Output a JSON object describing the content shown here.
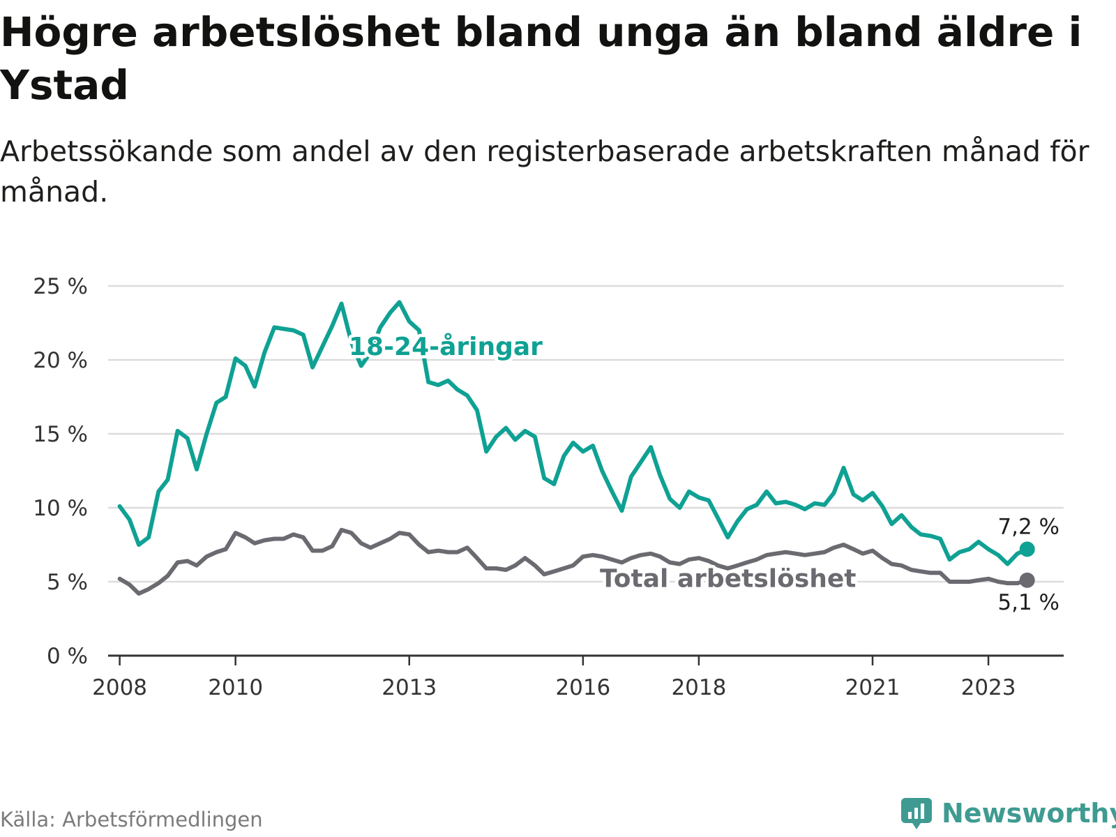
{
  "title": "Högre arbetslöshet bland unga än bland äldre i Ystad",
  "subtitle": "Arbetssökande som andel av den registerbaserade arbetskraften månad för månad.",
  "source": "Källa: Arbetsförmedlingen",
  "brand": "Newsworthy",
  "colors": {
    "youth": "#0fa193",
    "total": "#6b6a70",
    "grid": "#dcdcdc",
    "axis": "#333333",
    "brand": "#3f9b91"
  },
  "chart_data": {
    "type": "line",
    "title": "Högre arbetslöshet bland unga än bland äldre i Ystad",
    "xlabel": "",
    "ylabel": "",
    "xlim": [
      2007.8,
      2024.3
    ],
    "ylim": [
      0,
      25
    ],
    "y_ticks": [
      0,
      5,
      10,
      15,
      20,
      25
    ],
    "y_tick_labels": [
      "0 %",
      "5 %",
      "10 %",
      "15 %",
      "20 %",
      "25 %"
    ],
    "x_ticks": [
      2008,
      2010,
      2013,
      2016,
      2018,
      2021,
      2023
    ],
    "x_tick_labels": [
      "2008",
      "2010",
      "2013",
      "2016",
      "2018",
      "2021",
      "2023"
    ],
    "series": [
      {
        "name": "18-24-åringar",
        "color": "#0fa193",
        "end_label": "7,2 %",
        "end_value": 7.2,
        "points": [
          [
            2008.0,
            10.1
          ],
          [
            2008.17,
            9.2
          ],
          [
            2008.33,
            7.5
          ],
          [
            2008.5,
            8.0
          ],
          [
            2008.67,
            11.1
          ],
          [
            2008.83,
            11.9
          ],
          [
            2009.0,
            15.2
          ],
          [
            2009.17,
            14.7
          ],
          [
            2009.33,
            12.6
          ],
          [
            2009.5,
            15.0
          ],
          [
            2009.67,
            17.1
          ],
          [
            2009.83,
            17.5
          ],
          [
            2010.0,
            20.1
          ],
          [
            2010.17,
            19.6
          ],
          [
            2010.33,
            18.2
          ],
          [
            2010.5,
            20.5
          ],
          [
            2010.67,
            22.2
          ],
          [
            2010.83,
            22.1
          ],
          [
            2011.0,
            22.0
          ],
          [
            2011.17,
            21.7
          ],
          [
            2011.33,
            19.5
          ],
          [
            2011.5,
            20.9
          ],
          [
            2011.67,
            22.3
          ],
          [
            2011.83,
            23.8
          ],
          [
            2012.0,
            21.2
          ],
          [
            2012.17,
            19.6
          ],
          [
            2012.33,
            20.5
          ],
          [
            2012.5,
            22.2
          ],
          [
            2012.67,
            23.2
          ],
          [
            2012.83,
            23.9
          ],
          [
            2013.0,
            22.6
          ],
          [
            2013.17,
            22.0
          ],
          [
            2013.33,
            18.5
          ],
          [
            2013.5,
            18.3
          ],
          [
            2013.67,
            18.6
          ],
          [
            2013.83,
            18.0
          ],
          [
            2014.0,
            17.6
          ],
          [
            2014.17,
            16.6
          ],
          [
            2014.33,
            13.8
          ],
          [
            2014.5,
            14.8
          ],
          [
            2014.67,
            15.4
          ],
          [
            2014.83,
            14.6
          ],
          [
            2015.0,
            15.2
          ],
          [
            2015.17,
            14.8
          ],
          [
            2015.33,
            12.0
          ],
          [
            2015.5,
            11.6
          ],
          [
            2015.67,
            13.5
          ],
          [
            2015.83,
            14.4
          ],
          [
            2016.0,
            13.8
          ],
          [
            2016.17,
            14.2
          ],
          [
            2016.33,
            12.5
          ],
          [
            2016.5,
            11.1
          ],
          [
            2016.67,
            9.8
          ],
          [
            2016.83,
            12.1
          ],
          [
            2017.0,
            13.1
          ],
          [
            2017.17,
            14.1
          ],
          [
            2017.33,
            12.2
          ],
          [
            2017.5,
            10.6
          ],
          [
            2017.67,
            10.0
          ],
          [
            2017.83,
            11.1
          ],
          [
            2018.0,
            10.7
          ],
          [
            2018.17,
            10.5
          ],
          [
            2018.33,
            9.3
          ],
          [
            2018.5,
            8.0
          ],
          [
            2018.67,
            9.1
          ],
          [
            2018.83,
            9.9
          ],
          [
            2019.0,
            10.2
          ],
          [
            2019.17,
            11.1
          ],
          [
            2019.33,
            10.3
          ],
          [
            2019.5,
            10.4
          ],
          [
            2019.67,
            10.2
          ],
          [
            2019.83,
            9.9
          ],
          [
            2020.0,
            10.3
          ],
          [
            2020.17,
            10.2
          ],
          [
            2020.33,
            11.0
          ],
          [
            2020.5,
            12.7
          ],
          [
            2020.67,
            10.9
          ],
          [
            2020.83,
            10.5
          ],
          [
            2021.0,
            11.0
          ],
          [
            2021.17,
            10.1
          ],
          [
            2021.33,
            8.9
          ],
          [
            2021.5,
            9.5
          ],
          [
            2021.67,
            8.7
          ],
          [
            2021.83,
            8.2
          ],
          [
            2022.0,
            8.1
          ],
          [
            2022.17,
            7.9
          ],
          [
            2022.33,
            6.5
          ],
          [
            2022.5,
            7.0
          ],
          [
            2022.67,
            7.2
          ],
          [
            2022.83,
            7.7
          ],
          [
            2023.0,
            7.2
          ],
          [
            2023.17,
            6.8
          ],
          [
            2023.33,
            6.2
          ],
          [
            2023.5,
            6.9
          ],
          [
            2023.67,
            7.2
          ]
        ]
      },
      {
        "name": "Total arbetslöshet",
        "color": "#6b6a70",
        "end_label": "5,1 %",
        "end_value": 5.1,
        "points": [
          [
            2008.0,
            5.2
          ],
          [
            2008.17,
            4.8
          ],
          [
            2008.33,
            4.2
          ],
          [
            2008.5,
            4.5
          ],
          [
            2008.67,
            4.9
          ],
          [
            2008.83,
            5.4
          ],
          [
            2009.0,
            6.3
          ],
          [
            2009.17,
            6.4
          ],
          [
            2009.33,
            6.1
          ],
          [
            2009.5,
            6.7
          ],
          [
            2009.67,
            7.0
          ],
          [
            2009.83,
            7.2
          ],
          [
            2010.0,
            8.3
          ],
          [
            2010.17,
            8.0
          ],
          [
            2010.33,
            7.6
          ],
          [
            2010.5,
            7.8
          ],
          [
            2010.67,
            7.9
          ],
          [
            2010.83,
            7.9
          ],
          [
            2011.0,
            8.2
          ],
          [
            2011.17,
            8.0
          ],
          [
            2011.33,
            7.1
          ],
          [
            2011.5,
            7.1
          ],
          [
            2011.67,
            7.4
          ],
          [
            2011.83,
            8.5
          ],
          [
            2012.0,
            8.3
          ],
          [
            2012.17,
            7.6
          ],
          [
            2012.33,
            7.3
          ],
          [
            2012.5,
            7.6
          ],
          [
            2012.67,
            7.9
          ],
          [
            2012.83,
            8.3
          ],
          [
            2013.0,
            8.2
          ],
          [
            2013.17,
            7.5
          ],
          [
            2013.33,
            7.0
          ],
          [
            2013.5,
            7.1
          ],
          [
            2013.67,
            7.0
          ],
          [
            2013.83,
            7.0
          ],
          [
            2014.0,
            7.3
          ],
          [
            2014.17,
            6.6
          ],
          [
            2014.33,
            5.9
          ],
          [
            2014.5,
            5.9
          ],
          [
            2014.67,
            5.8
          ],
          [
            2014.83,
            6.1
          ],
          [
            2015.0,
            6.6
          ],
          [
            2015.17,
            6.1
          ],
          [
            2015.33,
            5.5
          ],
          [
            2015.5,
            5.7
          ],
          [
            2015.67,
            5.9
          ],
          [
            2015.83,
            6.1
          ],
          [
            2016.0,
            6.7
          ],
          [
            2016.17,
            6.8
          ],
          [
            2016.33,
            6.7
          ],
          [
            2016.5,
            6.5
          ],
          [
            2016.67,
            6.3
          ],
          [
            2016.83,
            6.6
          ],
          [
            2017.0,
            6.8
          ],
          [
            2017.17,
            6.9
          ],
          [
            2017.33,
            6.7
          ],
          [
            2017.5,
            6.3
          ],
          [
            2017.67,
            6.2
          ],
          [
            2017.83,
            6.5
          ],
          [
            2018.0,
            6.6
          ],
          [
            2018.17,
            6.4
          ],
          [
            2018.33,
            6.1
          ],
          [
            2018.5,
            5.9
          ],
          [
            2018.67,
            6.1
          ],
          [
            2018.83,
            6.3
          ],
          [
            2019.0,
            6.5
          ],
          [
            2019.17,
            6.8
          ],
          [
            2019.33,
            6.9
          ],
          [
            2019.5,
            7.0
          ],
          [
            2019.67,
            6.9
          ],
          [
            2019.83,
            6.8
          ],
          [
            2020.0,
            6.9
          ],
          [
            2020.17,
            7.0
          ],
          [
            2020.33,
            7.3
          ],
          [
            2020.5,
            7.5
          ],
          [
            2020.67,
            7.2
          ],
          [
            2020.83,
            6.9
          ],
          [
            2021.0,
            7.1
          ],
          [
            2021.17,
            6.6
          ],
          [
            2021.33,
            6.2
          ],
          [
            2021.5,
            6.1
          ],
          [
            2021.67,
            5.8
          ],
          [
            2021.83,
            5.7
          ],
          [
            2022.0,
            5.6
          ],
          [
            2022.17,
            5.6
          ],
          [
            2022.33,
            5.0
          ],
          [
            2022.5,
            5.0
          ],
          [
            2022.67,
            5.0
          ],
          [
            2022.83,
            5.1
          ],
          [
            2023.0,
            5.2
          ],
          [
            2023.17,
            5.0
          ],
          [
            2023.33,
            4.9
          ],
          [
            2023.5,
            4.9
          ],
          [
            2023.67,
            5.1
          ]
        ]
      }
    ],
    "labels": {
      "youth": "18-24-åringar",
      "total": "Total arbetslöshet"
    }
  }
}
